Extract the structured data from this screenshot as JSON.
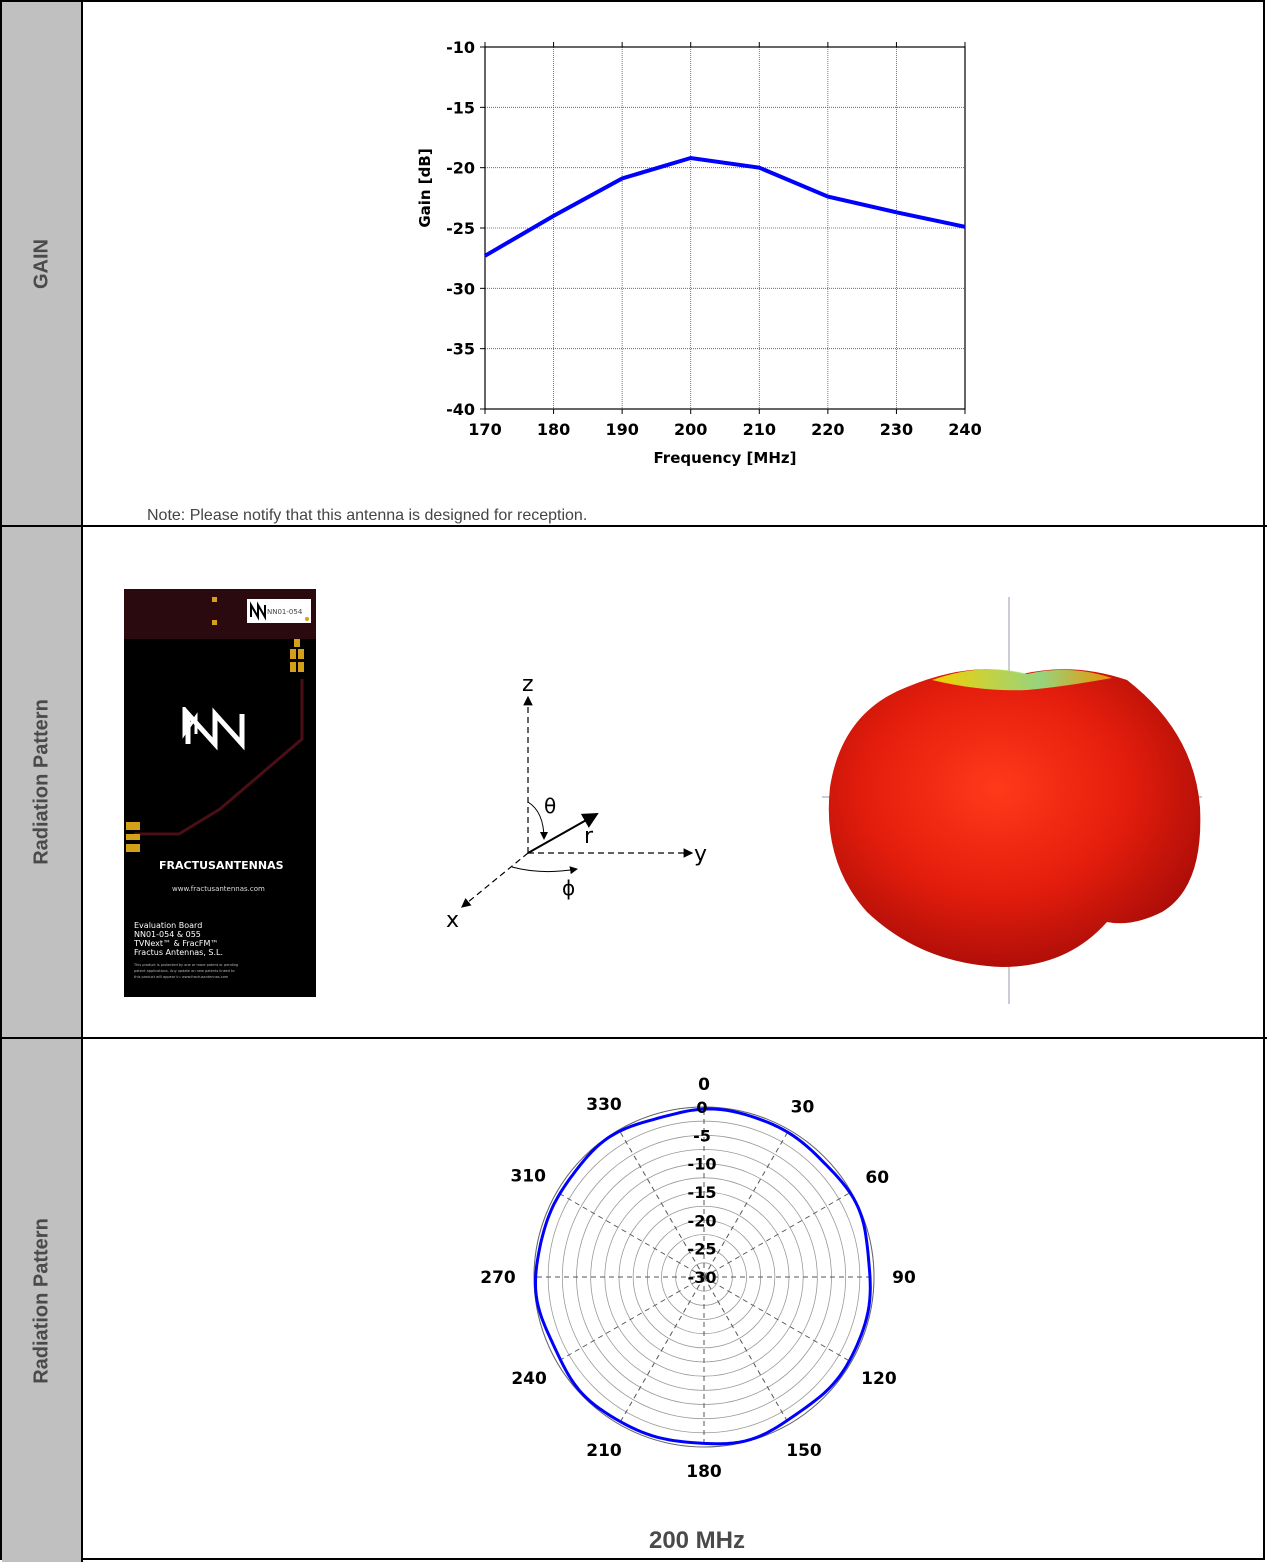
{
  "rows": {
    "gain_label": "GAIN",
    "pattern3d_label": "Radiation Pattern",
    "polar_label": "Radiation Pattern"
  },
  "note": "Note: Please notify that this antenna is designed for reception.",
  "board": {
    "part_badge": "NN01-054",
    "logo_text": "FRACTUSANTENNAS",
    "url": "www.fractusantennas.com",
    "lines": [
      "Evaluation Board",
      "NN01-054 & 055",
      "TVNext™ & FracFM™",
      "Fractus Antennas, S.L."
    ],
    "fine_print": [
      "This product is protected by one or more patent or pending",
      "patent applications.       Any update on new patents linked to",
      "this product will appear in: www.fractusantennas.com"
    ]
  },
  "axes_diagram": {
    "z": "z",
    "y": "y",
    "x": "x",
    "r": "r",
    "theta": "θ",
    "phi": "ϕ"
  },
  "polar_caption": "200 MHz",
  "colors": {
    "series": "#0000ff",
    "pattern_red": "#e82a14",
    "board_bg": "#000000"
  },
  "chart_data": [
    {
      "type": "line",
      "xlabel": "Frequency [MHz]",
      "ylabel": "Gain [dB]",
      "xlim": [
        170,
        240
      ],
      "ylim": [
        -40,
        -10
      ],
      "xticks": [
        "170",
        "180",
        "190",
        "200",
        "210",
        "220",
        "230",
        "240"
      ],
      "yticks": [
        "-10",
        "-15",
        "-20",
        "-25",
        "-30",
        "-35",
        "-40"
      ],
      "grid": true,
      "series": [
        {
          "x": [
            170,
            180,
            190,
            200,
            210,
            220,
            230,
            240
          ],
          "y": [
            -27.3,
            -24.0,
            -20.9,
            -19.2,
            -20.0,
            -22.4,
            -23.7,
            -24.9
          ]
        }
      ]
    },
    {
      "type": "polar",
      "angle_labels": [
        "0",
        "30",
        "60",
        "90",
        "120",
        "150",
        "180",
        "210",
        "240",
        "270",
        "310",
        "330"
      ],
      "radial_labels": [
        "0",
        "-5",
        "-10",
        "-15",
        "-20",
        "-25",
        "-30"
      ],
      "rlim": [
        -30,
        0
      ],
      "series": [
        {
          "approx_level_db": -0.5
        }
      ]
    }
  ]
}
